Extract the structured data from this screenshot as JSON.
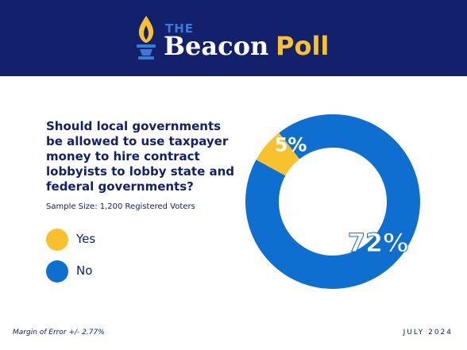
{
  "header": {
    "logo_the": "THE",
    "logo_beacon": "Beacon",
    "logo_poll": "Poll"
  },
  "question": "Should local governments be allowed to use taxpayer money to hire contract lobbyists to lobby state and federal governments?",
  "sample_size": "Sample Size: 1,200 Registered Voters",
  "legend": [
    {
      "label": "Yes",
      "color": "#f8c12d"
    },
    {
      "label": "No",
      "color": "#0f6fd1"
    }
  ],
  "footer": {
    "margin_of_error": "Margin of Error +/- 2.77%",
    "date": "JULY 2024"
  },
  "colors": {
    "header_bg": "#13206b",
    "yes": "#f8c12d",
    "no": "#0f6fd1",
    "text": "#13206b"
  },
  "chart_data": {
    "type": "pie",
    "style": "donut",
    "categories": [
      "Yes",
      "No"
    ],
    "values": [
      5,
      72
    ],
    "labels": [
      "5%",
      "72%"
    ],
    "colors": [
      "#f8c12d",
      "#0f6fd1"
    ]
  }
}
